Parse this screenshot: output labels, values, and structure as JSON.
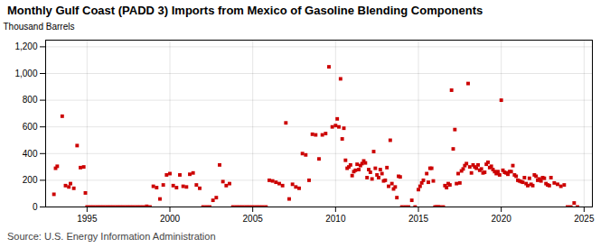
{
  "chart_data": {
    "type": "scatter",
    "title": "Monthly Gulf Coast (PADD 3) Imports from Mexico of Gasoline Blending Components",
    "ylabel": "Thousand Barrels",
    "source": "Source: U.S. Energy Information Administration",
    "color": "#cc0000",
    "marker": "square",
    "grid": true,
    "xlim": [
      1992.5,
      2025.5
    ],
    "xticks": [
      1995,
      2000,
      2005,
      2010,
      2015,
      2020,
      2025
    ],
    "ylim": [
      0,
      1250
    ],
    "yticks": [
      0,
      200,
      400,
      600,
      800,
      {
        "value": 1000,
        "label": "1,000"
      },
      {
        "value": 1200,
        "label": "1,200"
      }
    ],
    "x": [
      1993.0,
      1993.1,
      1993.2,
      1993.5,
      1993.7,
      1993.9,
      1994.0,
      1994.2,
      1994.4,
      1994.6,
      1994.8,
      1994.9,
      1995.0,
      1995.2,
      1995.4,
      1995.6,
      1995.8,
      1996.0,
      1996.2,
      1996.4,
      1996.6,
      1996.8,
      1997.0,
      1997.2,
      1997.4,
      1997.6,
      1997.8,
      1998.0,
      1998.2,
      1998.4,
      1998.6,
      1998.8,
      1999.0,
      1999.2,
      1999.4,
      1999.6,
      1999.8,
      2000.0,
      2000.2,
      2000.4,
      2000.6,
      2000.8,
      2001.0,
      2001.2,
      2001.4,
      2001.6,
      2001.8,
      2002.0,
      2002.2,
      2002.4,
      2002.6,
      2002.8,
      2003.0,
      2003.2,
      2003.4,
      2003.6,
      2003.8,
      2004.0,
      2004.2,
      2004.4,
      2004.6,
      2004.8,
      2005.0,
      2005.2,
      2005.4,
      2005.6,
      2005.8,
      2006.0,
      2006.2,
      2006.4,
      2006.6,
      2006.8,
      2007.0,
      2007.2,
      2007.4,
      2007.6,
      2007.8,
      2008.0,
      2008.2,
      2008.4,
      2008.6,
      2008.8,
      2009.0,
      2009.2,
      2009.4,
      2009.6,
      2009.8,
      2010.0,
      2010.1,
      2010.2,
      2010.3,
      2010.4,
      2010.5,
      2010.6,
      2010.7,
      2010.8,
      2010.9,
      2011.0,
      2011.1,
      2011.2,
      2011.3,
      2011.4,
      2011.5,
      2011.6,
      2011.7,
      2011.8,
      2011.9,
      2012.0,
      2012.1,
      2012.2,
      2012.3,
      2012.4,
      2012.5,
      2012.6,
      2012.7,
      2012.8,
      2012.9,
      2013.0,
      2013.1,
      2013.2,
      2013.3,
      2013.4,
      2013.5,
      2013.6,
      2013.7,
      2013.8,
      2013.9,
      2014.0,
      2014.2,
      2014.4,
      2014.6,
      2014.8,
      2015.0,
      2015.1,
      2015.2,
      2015.3,
      2015.5,
      2015.6,
      2015.7,
      2015.8,
      2015.9,
      2016.0,
      2016.1,
      2016.2,
      2016.3,
      2016.5,
      2016.6,
      2016.7,
      2016.8,
      2016.9,
      2017.0,
      2017.1,
      2017.2,
      2017.3,
      2017.4,
      2017.5,
      2017.6,
      2017.7,
      2017.8,
      2017.9,
      2018.0,
      2018.1,
      2018.2,
      2018.3,
      2018.4,
      2018.5,
      2018.6,
      2018.7,
      2018.8,
      2018.9,
      2019.0,
      2019.1,
      2019.2,
      2019.3,
      2019.4,
      2019.5,
      2019.6,
      2019.7,
      2019.8,
      2019.9,
      2020.0,
      2020.1,
      2020.2,
      2020.3,
      2020.4,
      2020.5,
      2020.6,
      2020.7,
      2020.8,
      2020.9,
      2021.0,
      2021.1,
      2021.2,
      2021.3,
      2021.4,
      2021.5,
      2021.6,
      2021.7,
      2021.8,
      2021.9,
      2022.0,
      2022.1,
      2022.2,
      2022.3,
      2022.4,
      2022.5,
      2022.6,
      2022.7,
      2022.8,
      2022.9,
      2023.0,
      2023.2,
      2023.4,
      2023.6,
      2023.8,
      2024.0,
      2024.2,
      2024.4,
      2024.6
    ],
    "values": [
      95,
      290,
      305,
      680,
      160,
      150,
      175,
      140,
      460,
      295,
      300,
      105,
      0,
      0,
      0,
      0,
      0,
      0,
      0,
      0,
      0,
      0,
      0,
      0,
      0,
      0,
      0,
      0,
      0,
      0,
      5,
      0,
      155,
      145,
      60,
      165,
      240,
      250,
      160,
      145,
      240,
      155,
      150,
      245,
      255,
      165,
      140,
      0,
      0,
      0,
      50,
      70,
      315,
      190,
      160,
      175,
      0,
      0,
      0,
      0,
      0,
      0,
      0,
      0,
      0,
      0,
      0,
      200,
      195,
      185,
      175,
      160,
      630,
      60,
      170,
      150,
      140,
      400,
      390,
      200,
      545,
      540,
      360,
      540,
      550,
      1050,
      600,
      610,
      660,
      600,
      960,
      510,
      590,
      350,
      290,
      300,
      315,
      235,
      265,
      275,
      320,
      280,
      310,
      325,
      345,
      330,
      220,
      280,
      260,
      210,
      415,
      290,
      240,
      220,
      280,
      250,
      195,
      200,
      295,
      155,
      500,
      175,
      135,
      150,
      70,
      230,
      225,
      0,
      0,
      0,
      50,
      0,
      130,
      155,
      180,
      200,
      250,
      185,
      290,
      290,
      195,
      0,
      0,
      0,
      0,
      0,
      160,
      145,
      175,
      165,
      875,
      435,
      580,
      175,
      250,
      180,
      270,
      285,
      310,
      325,
      925,
      300,
      255,
      315,
      300,
      290,
      315,
      275,
      285,
      255,
      260,
      320,
      335,
      295,
      305,
      280,
      265,
      250,
      265,
      240,
      800,
      275,
      260,
      255,
      245,
      265,
      265,
      310,
      240,
      230,
      200,
      195,
      190,
      185,
      220,
      175,
      160,
      215,
      170,
      160,
      240,
      230,
      200,
      210,
      195,
      220,
      215,
      175,
      165,
      160,
      220,
      180,
      170,
      155,
      165,
      0,
      0,
      30,
      0
    ]
  }
}
